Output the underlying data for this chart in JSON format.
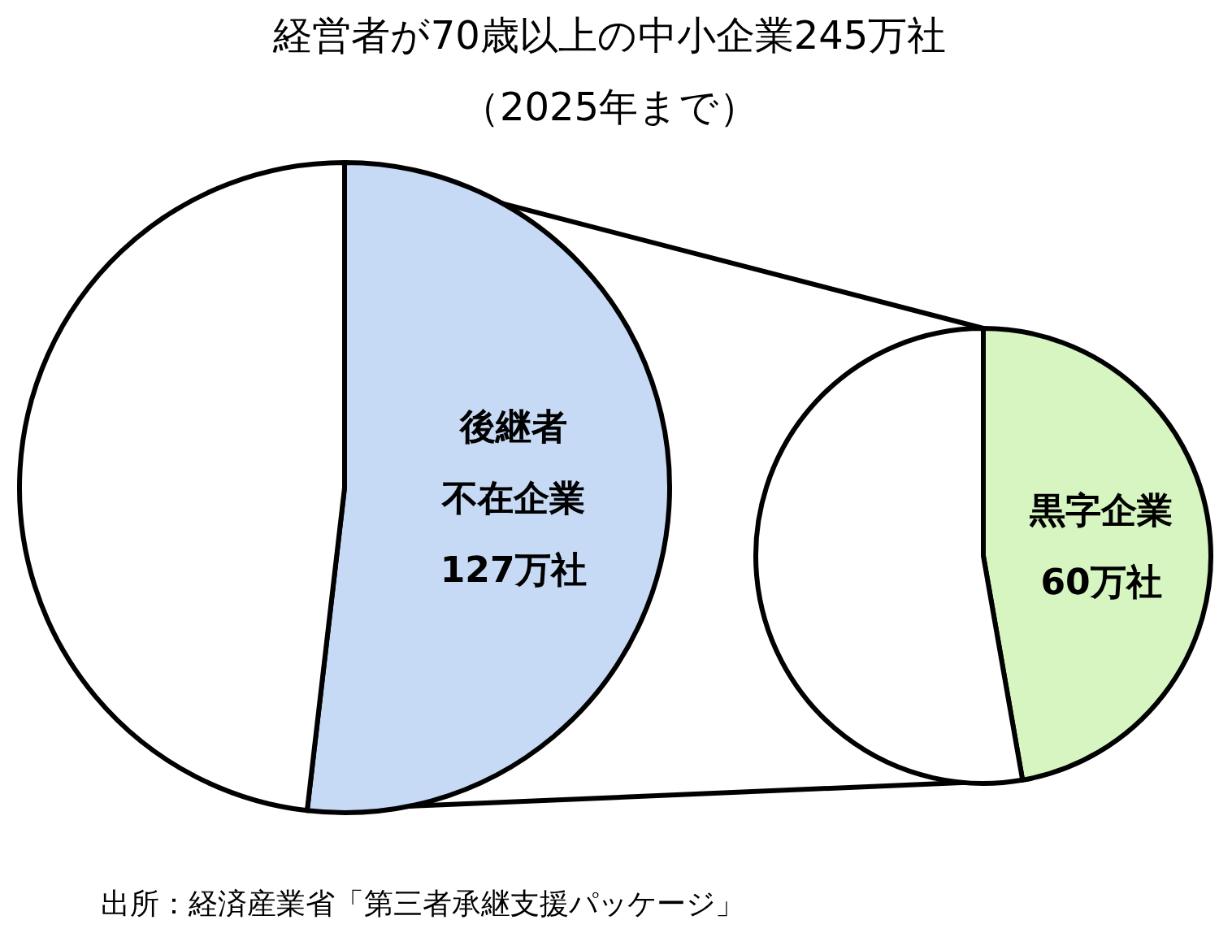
{
  "chart_data": [
    {
      "type": "pie",
      "title": "経営者が70歳以上の中小企業245万社",
      "subtitle": "（2025年まで）",
      "categories": [
        "後継者不在企業",
        null
      ],
      "values": [
        127,
        118
      ],
      "colors": [
        "#c6daf5",
        "#ffffff"
      ],
      "value_labels": [
        "127万社",
        null
      ]
    },
    {
      "type": "pie",
      "categories": [
        "黒字企業",
        null
      ],
      "values": [
        60,
        67
      ],
      "colors": [
        "#d6f5c0",
        "#ffffff"
      ],
      "value_labels": [
        "60万社",
        null
      ],
      "annotations": [
        "出所：経済産業省「第三者承継支援パッケージ」"
      ]
    }
  ]
}
